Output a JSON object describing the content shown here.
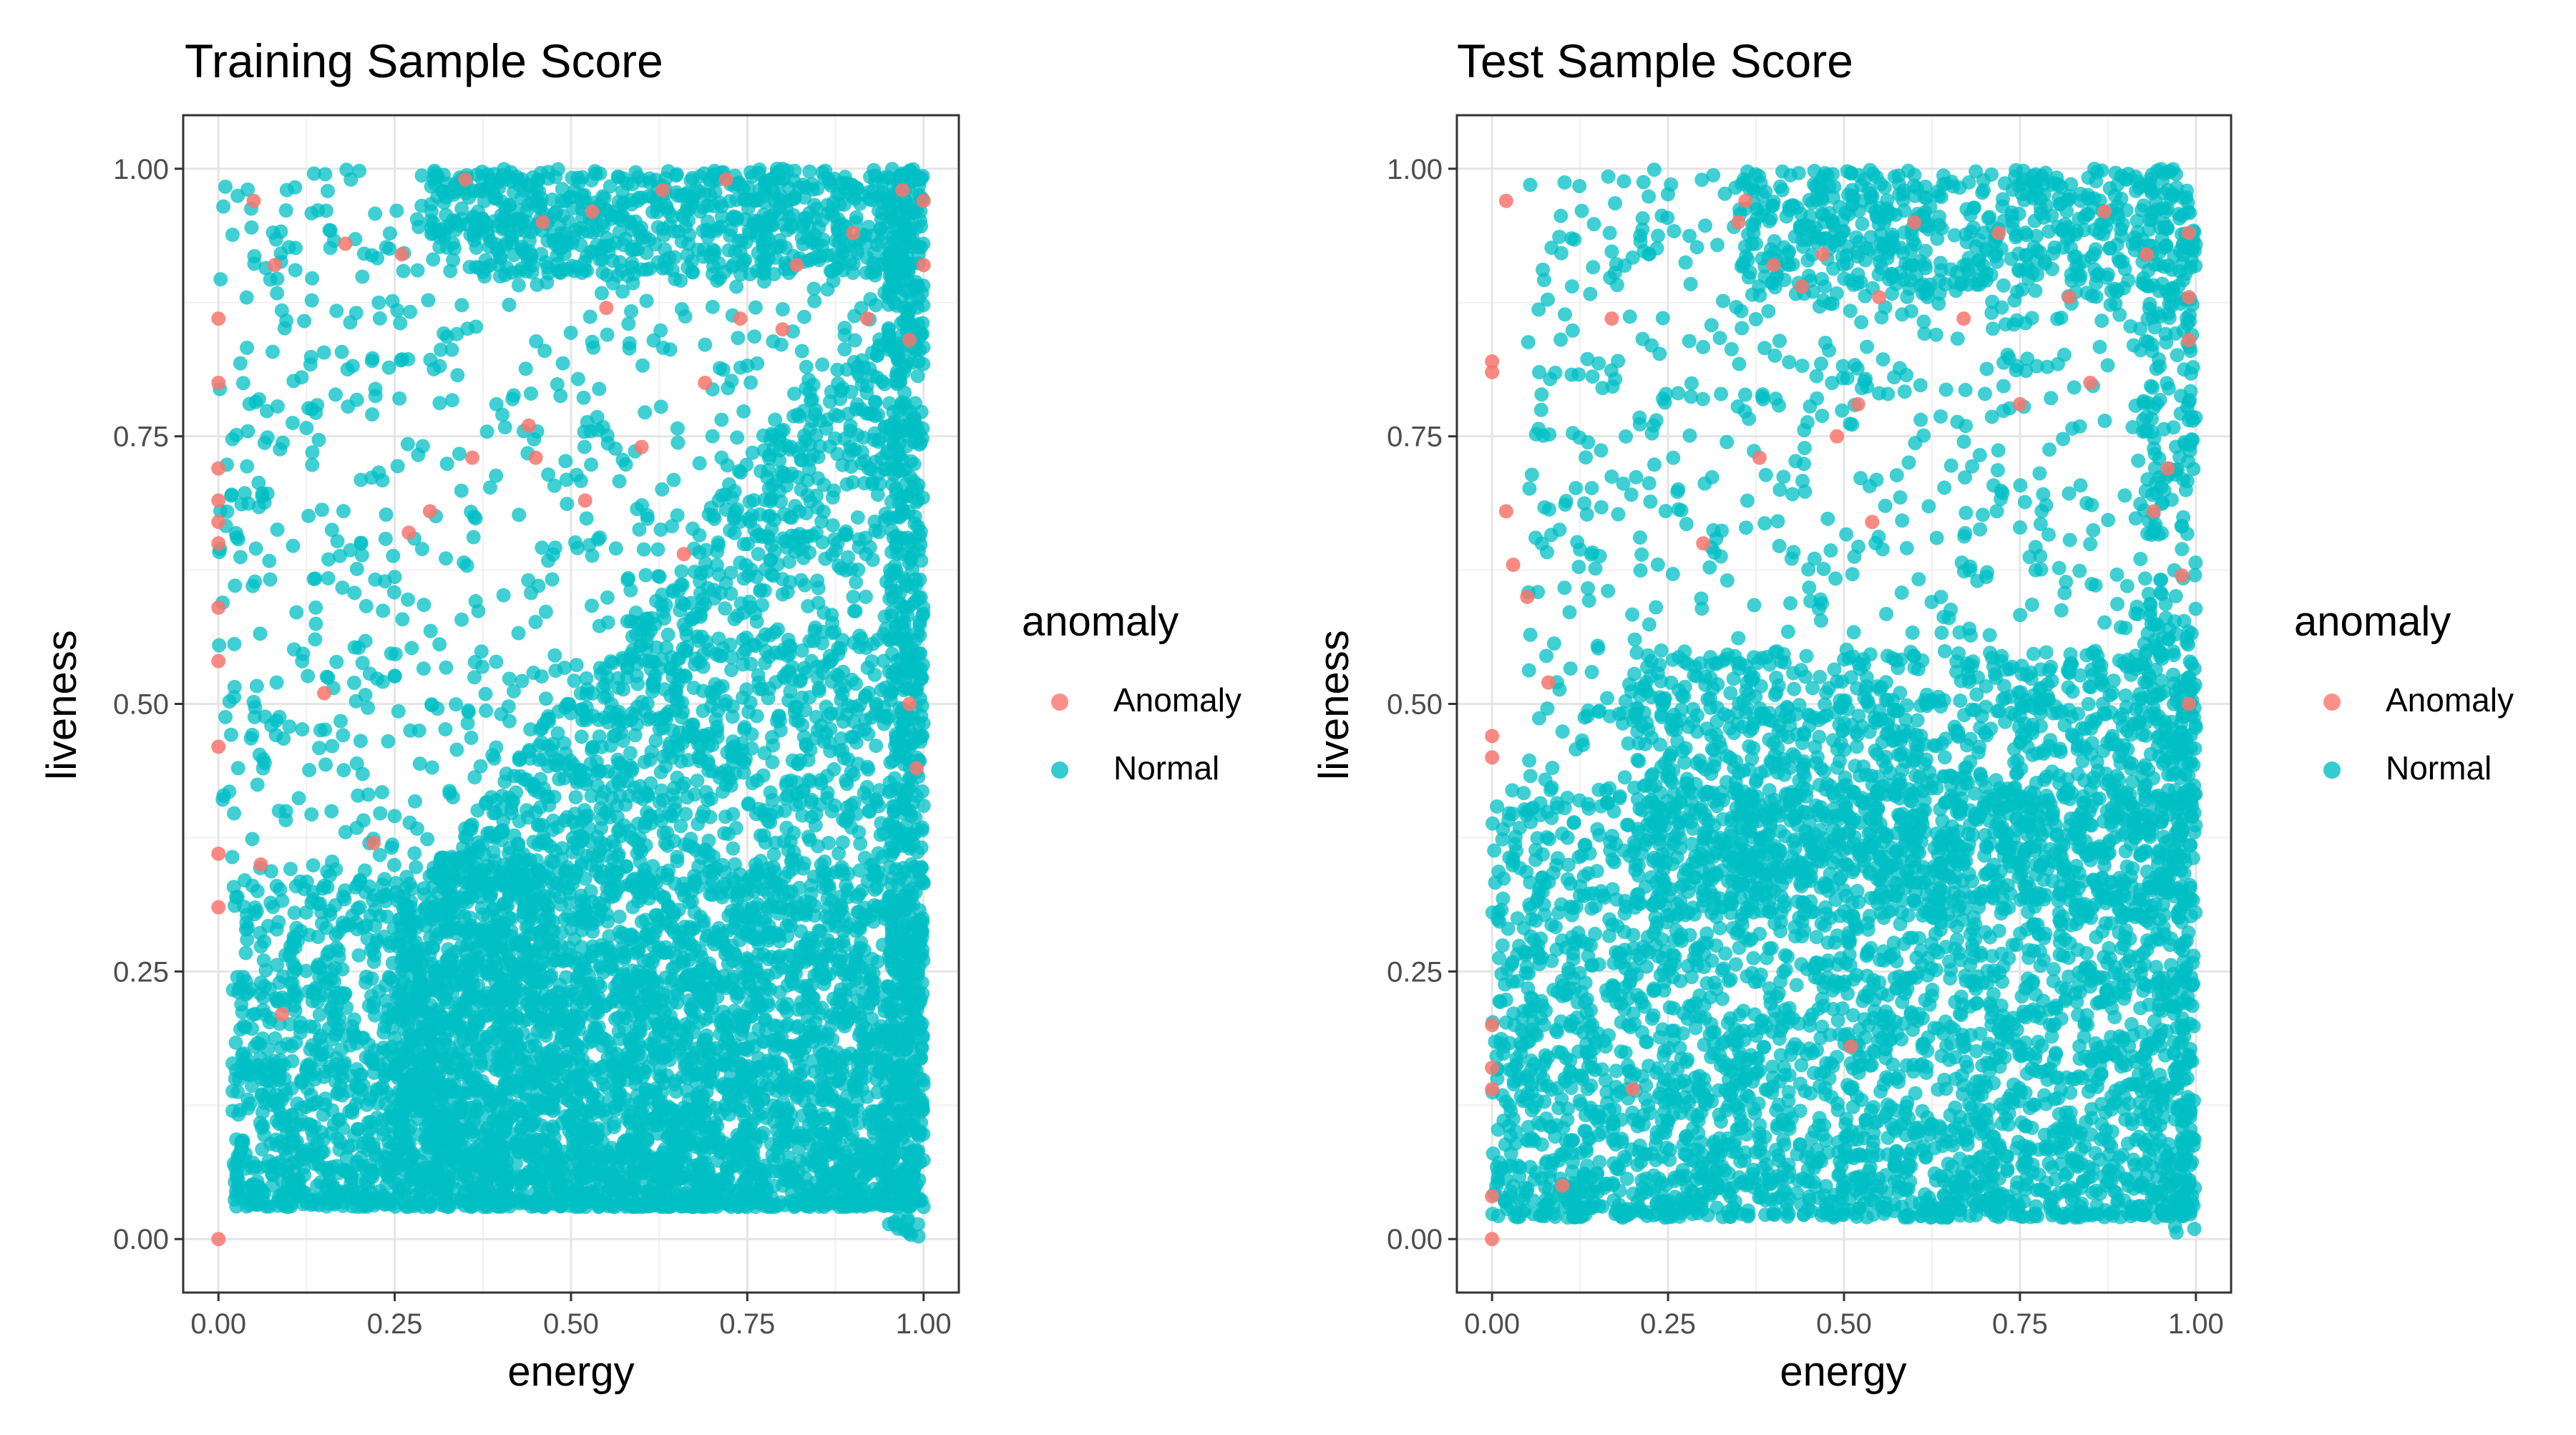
{
  "chart_data": [
    {
      "type": "scatter",
      "title": "Training Sample Score",
      "xlabel": "energy",
      "ylabel": "liveness",
      "xlim": [
        -0.05,
        1.05
      ],
      "ylim": [
        -0.05,
        1.05
      ],
      "x_ticks": [
        0.0,
        0.25,
        0.5,
        0.75,
        1.0
      ],
      "x_tick_labels": [
        "0.00",
        "0.25",
        "0.50",
        "0.75",
        "1.00"
      ],
      "y_ticks": [
        0.0,
        0.25,
        0.5,
        0.75,
        1.0
      ],
      "y_tick_labels": [
        "0.00",
        "0.25",
        "0.50",
        "0.75",
        "1.00"
      ],
      "grid": true,
      "legend": {
        "title": "anomaly",
        "placement": "right",
        "entries": [
          "Anomaly",
          "Normal"
        ]
      },
      "series": [
        {
          "name": "Anomaly",
          "color": "#F8766D",
          "points": [
            [
              0.0,
              0.0
            ],
            [
              0.0,
              0.72
            ],
            [
              0.0,
              0.69
            ],
            [
              0.0,
              0.86
            ],
            [
              0.0,
              0.54
            ],
            [
              0.0,
              0.46
            ],
            [
              0.0,
              0.36
            ],
            [
              0.0,
              0.31
            ],
            [
              0.0,
              0.67
            ],
            [
              0.0,
              0.8
            ],
            [
              0.0,
              0.59
            ],
            [
              0.0,
              0.65
            ],
            [
              0.05,
              0.97
            ],
            [
              0.06,
              0.35
            ],
            [
              0.08,
              0.91
            ],
            [
              0.18,
              0.93
            ],
            [
              0.26,
              0.92
            ],
            [
              0.35,
              0.99
            ],
            [
              0.46,
              0.95
            ],
            [
              0.53,
              0.96
            ],
            [
              0.63,
              0.98
            ],
            [
              0.72,
              0.99
            ],
            [
              0.82,
              0.91
            ],
            [
              0.9,
              0.94
            ],
            [
              0.97,
              0.98
            ],
            [
              1.0,
              0.97
            ],
            [
              1.0,
              0.91
            ],
            [
              0.98,
              0.84
            ],
            [
              0.92,
              0.86
            ],
            [
              0.8,
              0.85
            ],
            [
              0.69,
              0.8
            ],
            [
              0.6,
              0.74
            ],
            [
              0.55,
              0.87
            ],
            [
              0.44,
              0.76
            ],
            [
              0.36,
              0.73
            ],
            [
              0.3,
              0.68
            ],
            [
              0.27,
              0.66
            ],
            [
              0.22,
              0.37
            ],
            [
              0.15,
              0.51
            ],
            [
              0.09,
              0.21
            ],
            [
              0.99,
              0.44
            ],
            [
              0.98,
              0.5
            ],
            [
              0.45,
              0.73
            ],
            [
              0.52,
              0.69
            ],
            [
              0.66,
              0.64
            ],
            [
              0.74,
              0.86
            ]
          ]
        },
        {
          "name": "Normal",
          "color": "#00BFC4",
          "points": []
        }
      ]
    },
    {
      "type": "scatter",
      "title": "Test Sample Score",
      "xlabel": "energy",
      "ylabel": "liveness",
      "xlim": [
        -0.05,
        1.05
      ],
      "ylim": [
        -0.05,
        1.05
      ],
      "x_ticks": [
        0.0,
        0.25,
        0.5,
        0.75,
        1.0
      ],
      "x_tick_labels": [
        "0.00",
        "0.25",
        "0.50",
        "0.75",
        "1.00"
      ],
      "y_ticks": [
        0.0,
        0.25,
        0.5,
        0.75,
        1.0
      ],
      "y_tick_labels": [
        "0.00",
        "0.25",
        "0.50",
        "0.75",
        "1.00"
      ],
      "grid": true,
      "legend": {
        "title": "anomaly",
        "placement": "right",
        "entries": [
          "Anomaly",
          "Normal"
        ]
      },
      "series": [
        {
          "name": "Anomaly",
          "color": "#F8766D",
          "points": [
            [
              0.0,
              0.0
            ],
            [
              0.0,
              0.82
            ],
            [
              0.0,
              0.81
            ],
            [
              0.0,
              0.47
            ],
            [
              0.0,
              0.45
            ],
            [
              0.0,
              0.2
            ],
            [
              0.0,
              0.16
            ],
            [
              0.0,
              0.14
            ],
            [
              0.0,
              0.04
            ],
            [
              0.02,
              0.97
            ],
            [
              0.02,
              0.68
            ],
            [
              0.03,
              0.63
            ],
            [
              0.05,
              0.6
            ],
            [
              0.08,
              0.52
            ],
            [
              0.1,
              0.05
            ],
            [
              0.17,
              0.86
            ],
            [
              0.2,
              0.14
            ],
            [
              0.36,
              0.97
            ],
            [
              0.35,
              0.95
            ],
            [
              0.4,
              0.91
            ],
            [
              0.44,
              0.89
            ],
            [
              0.47,
              0.92
            ],
            [
              0.55,
              0.88
            ],
            [
              0.52,
              0.78
            ],
            [
              0.49,
              0.75
            ],
            [
              0.54,
              0.67
            ],
            [
              0.51,
              0.18
            ],
            [
              0.6,
              0.95
            ],
            [
              0.67,
              0.86
            ],
            [
              0.72,
              0.94
            ],
            [
              0.82,
              0.88
            ],
            [
              0.87,
              0.96
            ],
            [
              0.93,
              0.92
            ],
            [
              0.99,
              0.94
            ],
            [
              0.99,
              0.88
            ],
            [
              0.99,
              0.84
            ],
            [
              0.96,
              0.72
            ],
            [
              0.94,
              0.68
            ],
            [
              0.98,
              0.62
            ],
            [
              0.99,
              0.5
            ],
            [
              0.3,
              0.65
            ],
            [
              0.38,
              0.73
            ],
            [
              0.75,
              0.78
            ],
            [
              0.85,
              0.8
            ]
          ]
        },
        {
          "name": "Normal",
          "color": "#00BFC4",
          "points": []
        }
      ]
    }
  ]
}
